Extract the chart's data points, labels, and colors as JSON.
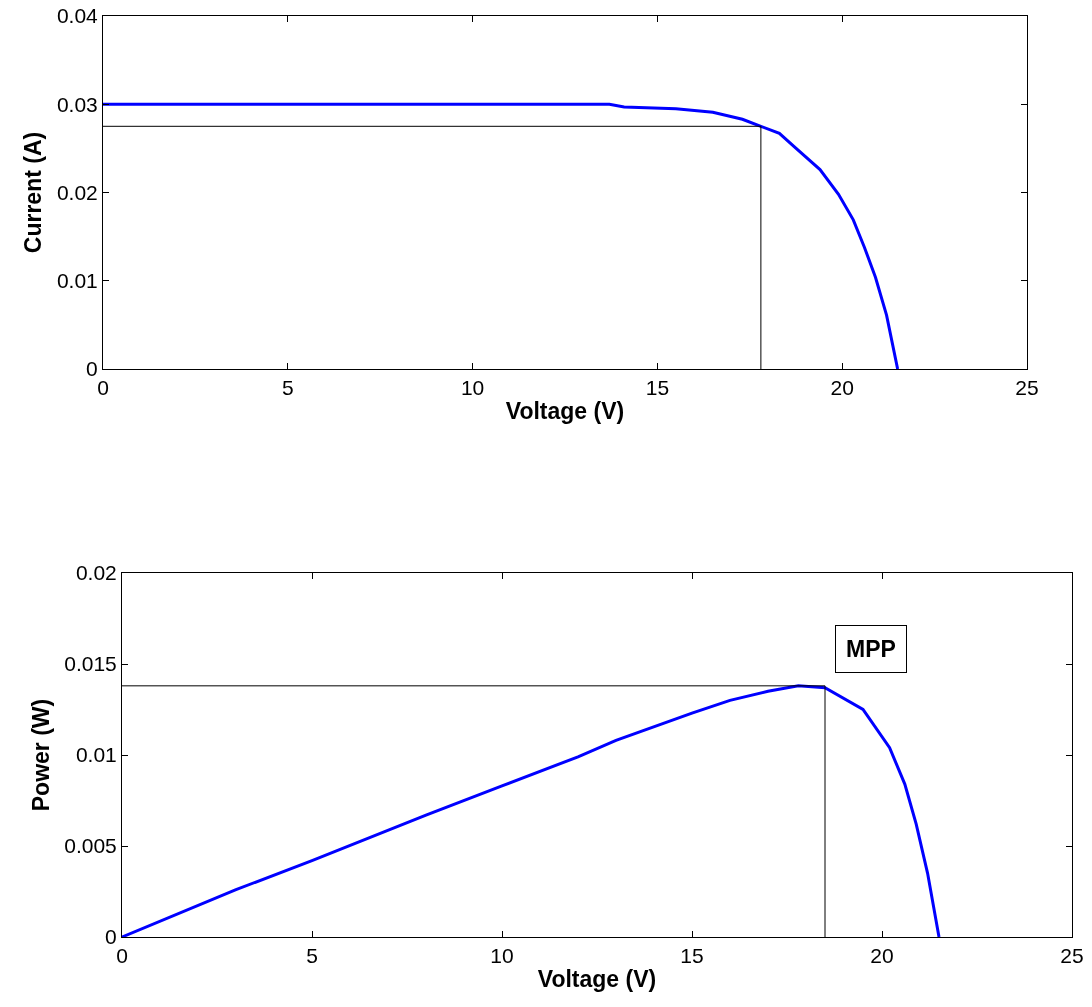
{
  "chart_data": [
    {
      "type": "line",
      "xlabel": "Voltage (V)",
      "ylabel": "Current (A)",
      "xlim": [
        0,
        25
      ],
      "xticks": [
        0,
        5,
        10,
        15,
        20,
        25
      ],
      "ylim": [
        0,
        0.04
      ],
      "yticks": [
        0,
        0.01,
        0.02,
        0.03,
        0.04
      ],
      "grid": false,
      "series": [
        {
          "color": "#0000ff",
          "x": [
            0,
            13.7,
            14.1,
            15.5,
            16.5,
            17.3,
            17.8,
            18.3,
            18.7,
            19.4,
            19.9,
            20.3,
            20.6,
            20.9,
            21.2,
            21.5
          ],
          "values": [
            0.03,
            0.03,
            0.0297,
            0.0295,
            0.0291,
            0.0283,
            0.0275,
            0.0267,
            0.0252,
            0.0226,
            0.0198,
            0.0169,
            0.0138,
            0.0104,
            0.0061,
            0
          ]
        },
        {
          "color": "#000000",
          "x": [
            0,
            17.8,
            17.8
          ],
          "values": [
            0.0275,
            0.0275,
            0
          ]
        }
      ]
    },
    {
      "type": "line",
      "xlabel": "Voltage (V)",
      "ylabel": "Power (W)",
      "xlim": [
        0,
        25
      ],
      "xticks": [
        0,
        5,
        10,
        15,
        20,
        25
      ],
      "ylim": [
        0,
        0.02
      ],
      "yticks": [
        0,
        0.005,
        0.01,
        0.015,
        0.02
      ],
      "grid": false,
      "annotations": [
        "MPP"
      ],
      "series": [
        {
          "color": "#0000ff",
          "x": [
            0,
            3,
            5,
            8,
            10,
            12,
            13,
            15,
            16,
            17,
            17.8,
            18.5,
            19.5,
            20.2,
            20.6,
            20.9,
            21.2,
            21.5
          ],
          "values": [
            0,
            0.0026,
            0.0042,
            0.0067,
            0.0083,
            0.0099,
            0.0108,
            0.0123,
            0.013,
            0.0135,
            0.0138,
            0.0137,
            0.0125,
            0.0104,
            0.0084,
            0.0062,
            0.0035,
            0
          ]
        },
        {
          "color": "#000000",
          "x": [
            0,
            18.5,
            18.5
          ],
          "values": [
            0.0138,
            0.0138,
            0
          ]
        }
      ]
    }
  ]
}
